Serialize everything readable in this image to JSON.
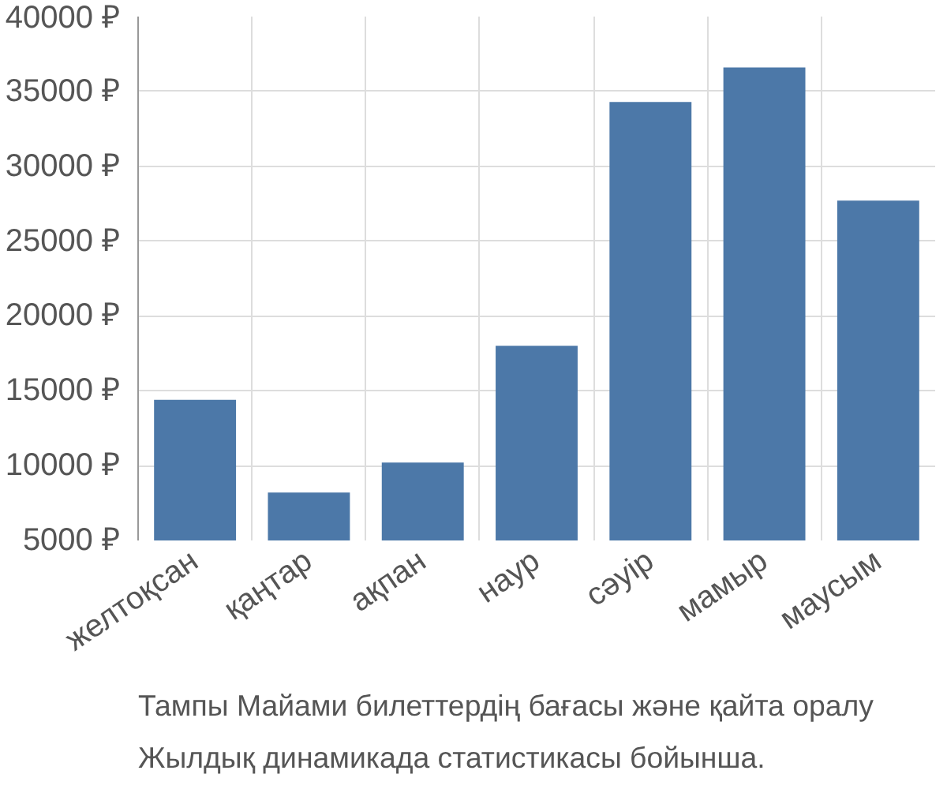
{
  "chart_data": {
    "type": "bar",
    "categories": [
      "желтоқсан",
      "қаңтар",
      "ақпан",
      "наур",
      "сәуір",
      "мамыр",
      "маусым"
    ],
    "values": [
      14400,
      8200,
      10200,
      18000,
      34300,
      36600,
      27700
    ],
    "color": "#4c78a8",
    "ylim": [
      5000,
      40000
    ],
    "yticks": [
      {
        "value": 5000,
        "label": "5000 ₽"
      },
      {
        "value": 10000,
        "label": "10000 ₽"
      },
      {
        "value": 15000,
        "label": "15000 ₽"
      },
      {
        "value": 20000,
        "label": "20000 ₽"
      },
      {
        "value": 25000,
        "label": "25000 ₽"
      },
      {
        "value": 30000,
        "label": "30000 ₽"
      },
      {
        "value": 35000,
        "label": "35000 ₽"
      },
      {
        "value": 40000,
        "label": "40000 ₽"
      }
    ],
    "grid": true,
    "annotations": [
      "Тампы Майами билеттердің бағасы және қайта оралу",
      "Жылдық динамикада статистикасы бойынша."
    ]
  }
}
